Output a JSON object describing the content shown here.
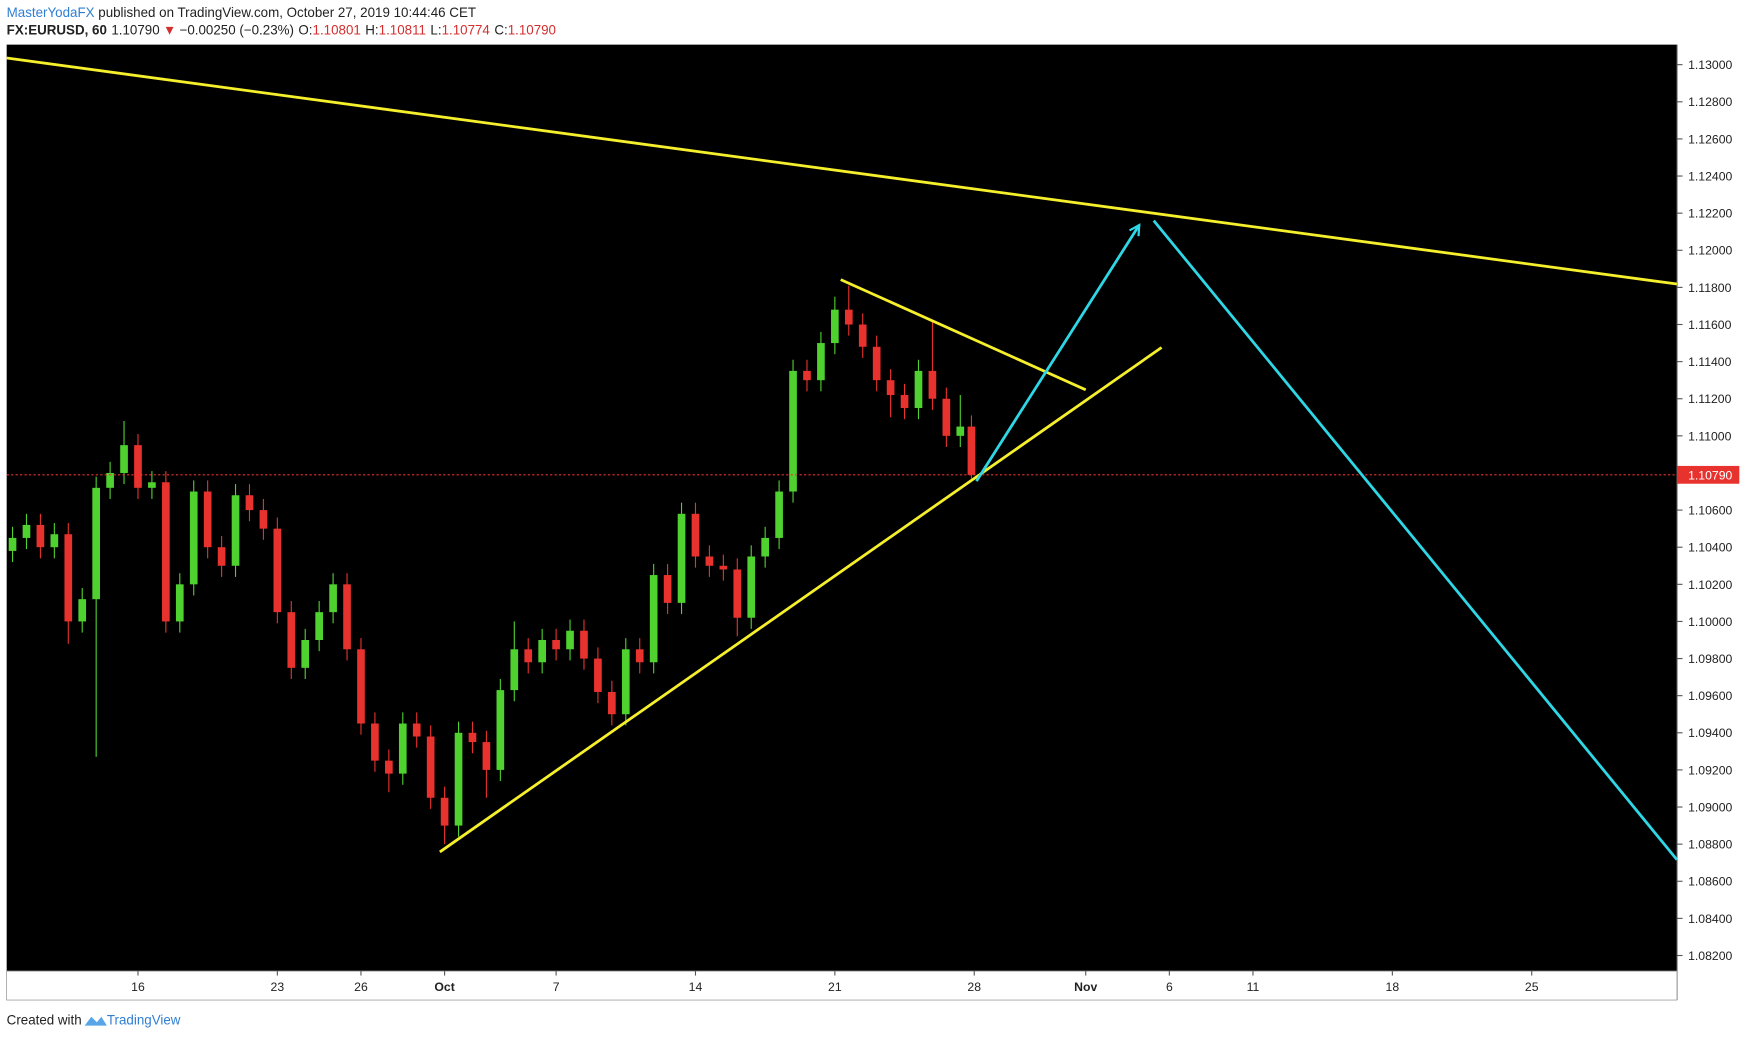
{
  "header": {
    "author": "MasterYodaFX",
    "published": " published on TradingView.com, October 27, 2019 10:44:46 CET",
    "symbol": "FX:EURUSD, 60",
    "last": "1.10790",
    "direction": "▼",
    "change": "−0.00250 (−0.23%)",
    "ohlc": [
      {
        "label": "O:",
        "value": "1.10801"
      },
      {
        "label": "H:",
        "value": "1.10811"
      },
      {
        "label": "L:",
        "value": "1.10774"
      },
      {
        "label": "C:",
        "value": "1.10790"
      }
    ]
  },
  "footer": {
    "text": "Created with",
    "brand": "TradingView"
  },
  "chart_data": {
    "type": "candlestick",
    "up_color": "#4fd130",
    "down_color": "#e8322e",
    "background": "#000000",
    "xlim": [
      -4.71,
      55.21
    ],
    "ylim": [
      1.08116,
      1.13108
    ],
    "xticks": [
      {
        "value": 0,
        "label": "16"
      },
      {
        "value": 5,
        "label": "23"
      },
      {
        "value": 8,
        "label": "26"
      },
      {
        "value": 11,
        "label": "Oct"
      },
      {
        "value": 15,
        "label": "7"
      },
      {
        "value": 20,
        "label": "14"
      },
      {
        "value": 25,
        "label": "21"
      },
      {
        "value": 30,
        "label": "28"
      },
      {
        "value": 34,
        "label": "Nov"
      },
      {
        "value": 37,
        "label": "6"
      },
      {
        "value": 40,
        "label": "11"
      },
      {
        "value": 45,
        "label": "18"
      },
      {
        "value": 50,
        "label": "25"
      }
    ],
    "yticks": [
      {
        "value": 1.082,
        "label": "1.08200"
      },
      {
        "value": 1.084,
        "label": "1.08400"
      },
      {
        "value": 1.086,
        "label": "1.08600"
      },
      {
        "value": 1.088,
        "label": "1.08800"
      },
      {
        "value": 1.09,
        "label": "1.09000"
      },
      {
        "value": 1.092,
        "label": "1.09200"
      },
      {
        "value": 1.094,
        "label": "1.09400"
      },
      {
        "value": 1.096,
        "label": "1.09600"
      },
      {
        "value": 1.098,
        "label": "1.09800"
      },
      {
        "value": 1.1,
        "label": "1.10000"
      },
      {
        "value": 1.102,
        "label": "1.10200"
      },
      {
        "value": 1.104,
        "label": "1.10400"
      },
      {
        "value": 1.106,
        "label": "1.10600"
      },
      {
        "value": 1.108,
        "label": "1.10800"
      },
      {
        "value": 1.11,
        "label": "1.11000"
      },
      {
        "value": 1.112,
        "label": "1.11200"
      },
      {
        "value": 1.114,
        "label": "1.11400"
      },
      {
        "value": 1.116,
        "label": "1.11600"
      },
      {
        "value": 1.118,
        "label": "1.11800"
      },
      {
        "value": 1.12,
        "label": "1.12000"
      },
      {
        "value": 1.122,
        "label": "1.12200"
      },
      {
        "value": 1.124,
        "label": "1.12400"
      },
      {
        "value": 1.126,
        "label": "1.12600"
      },
      {
        "value": 1.128,
        "label": "1.12800"
      },
      {
        "value": 1.13,
        "label": "1.13000"
      }
    ],
    "last_price": {
      "value": 1.1079,
      "label": "1.10790",
      "color": "#e8322e"
    },
    "ohlc": {
      "x": [
        -4.5,
        -4,
        -3.5,
        -3,
        -2.5,
        -2,
        -1.5,
        -1,
        -0.5,
        0,
        0.5,
        1,
        1.5,
        2,
        2.5,
        3,
        3.5,
        4,
        4.5,
        5,
        5.5,
        6,
        6.5,
        7,
        7.5,
        8,
        8.5,
        9,
        9.5,
        10,
        10.5,
        11,
        11.5,
        12,
        12.5,
        13,
        13.5,
        14,
        14.5,
        15,
        15.5,
        16,
        16.5,
        17,
        17.5,
        18,
        18.5,
        19,
        19.5,
        20,
        20.5,
        21,
        21.5,
        22,
        22.5,
        23,
        23.5,
        24,
        24.5,
        25,
        25.5,
        26,
        26.5,
        27,
        27.5,
        28,
        28.5,
        29,
        29.5,
        29.9
      ],
      "open": [
        1.1038,
        1.1045,
        1.1052,
        1.104,
        1.1047,
        1.1,
        1.1012,
        1.1072,
        1.108,
        1.1095,
        1.1072,
        1.1075,
        1.1,
        1.102,
        1.107,
        1.104,
        1.103,
        1.1068,
        1.106,
        1.105,
        1.1005,
        1.0975,
        1.099,
        1.1005,
        1.102,
        1.0985,
        1.0945,
        1.0925,
        1.0918,
        1.0945,
        1.0938,
        1.0905,
        1.089,
        1.094,
        1.0935,
        1.092,
        1.0963,
        1.0985,
        1.0978,
        1.099,
        1.0985,
        1.0995,
        1.098,
        1.0962,
        1.095,
        1.0985,
        1.0978,
        1.1025,
        1.101,
        1.1058,
        1.1035,
        1.103,
        1.1028,
        1.1002,
        1.1035,
        1.1045,
        1.107,
        1.1135,
        1.113,
        1.115,
        1.1168,
        1.116,
        1.1148,
        1.113,
        1.1122,
        1.1115,
        1.1135,
        1.112,
        1.11,
        1.1105
      ],
      "high": [
        1.1051,
        1.1058,
        1.1058,
        1.1053,
        1.1053,
        1.1018,
        1.1078,
        1.1086,
        1.1108,
        1.1101,
        1.1081,
        1.1081,
        1.1026,
        1.1076,
        1.1076,
        1.1046,
        1.1074,
        1.1074,
        1.1066,
        1.1056,
        1.1011,
        1.0996,
        1.1011,
        1.1026,
        1.1026,
        1.0991,
        1.0951,
        1.0931,
        1.0951,
        1.0951,
        1.0944,
        1.0911,
        1.0946,
        1.0946,
        1.0941,
        1.0969,
        1.1,
        1.0991,
        1.0996,
        1.0996,
        1.1001,
        1.1001,
        1.0986,
        1.0968,
        1.0991,
        1.0991,
        1.1031,
        1.1031,
        1.1064,
        1.1064,
        1.1041,
        1.1036,
        1.1034,
        1.1041,
        1.1051,
        1.1076,
        1.1141,
        1.1141,
        1.1156,
        1.1175,
        1.1181,
        1.1166,
        1.1154,
        1.1136,
        1.1128,
        1.1141,
        1.1162,
        1.1126,
        1.1122,
        1.1111
      ],
      "low": [
        1.1032,
        1.1039,
        1.1034,
        1.1034,
        1.0988,
        1.0994,
        1.0927,
        1.1066,
        1.1074,
        1.1066,
        1.1066,
        1.0994,
        1.0994,
        1.1014,
        1.1034,
        1.1024,
        1.1024,
        1.1054,
        1.1044,
        1.0999,
        1.0969,
        1.0969,
        1.0984,
        1.0999,
        1.0979,
        1.0939,
        1.0919,
        1.0908,
        1.0912,
        1.0932,
        1.0899,
        1.088,
        1.0884,
        1.0929,
        1.0905,
        1.0914,
        1.0957,
        1.0972,
        1.0972,
        1.0979,
        1.0979,
        1.0974,
        1.0956,
        1.0944,
        1.0944,
        1.0972,
        1.0972,
        1.1004,
        1.1004,
        1.1029,
        1.1024,
        1.1022,
        1.0992,
        1.0996,
        1.1029,
        1.1039,
        1.1064,
        1.1124,
        1.1124,
        1.1144,
        1.1154,
        1.1142,
        1.1124,
        1.111,
        1.1109,
        1.1109,
        1.1114,
        1.1094,
        1.1094,
        1.1077
      ],
      "close": [
        1.1045,
        1.1052,
        1.104,
        1.1047,
        1.1,
        1.1012,
        1.1072,
        1.108,
        1.1095,
        1.1072,
        1.1075,
        1.1,
        1.102,
        1.107,
        1.104,
        1.103,
        1.1068,
        1.106,
        1.105,
        1.1005,
        1.0975,
        1.099,
        1.1005,
        1.102,
        1.0985,
        1.0945,
        1.0925,
        1.0918,
        1.0945,
        1.0938,
        1.0905,
        1.089,
        1.094,
        1.0935,
        1.092,
        1.0963,
        1.0985,
        1.0978,
        1.099,
        1.0985,
        1.0995,
        1.098,
        1.0962,
        1.095,
        1.0985,
        1.0978,
        1.1025,
        1.101,
        1.1058,
        1.1035,
        1.103,
        1.1028,
        1.1002,
        1.1035,
        1.1045,
        1.107,
        1.1135,
        1.113,
        1.115,
        1.1168,
        1.116,
        1.1148,
        1.113,
        1.1122,
        1.1115,
        1.1135,
        1.112,
        1.11,
        1.1105,
        1.1079
      ]
    },
    "lines": [
      {
        "color": "#f5ef2c",
        "x": [
          -4.71,
          55.21
        ],
        "y": [
          1.13036,
          1.11818
        ],
        "arrow": false
      },
      {
        "color": "#f5ef2c",
        "x": [
          10.83,
          36.72
        ],
        "y": [
          1.08758,
          1.11476
        ],
        "arrow": false
      },
      {
        "color": "#f5ef2c",
        "x": [
          25.21,
          34.0
        ],
        "y": [
          1.11842,
          1.11248
        ],
        "arrow": false
      },
      {
        "color": "#2fd6e6",
        "x": [
          30.08,
          35.92
        ],
        "y": [
          1.10756,
          1.12136
        ],
        "arrow": true
      },
      {
        "color": "#2fd6e6",
        "x": [
          36.44,
          55.21
        ],
        "y": [
          1.1216,
          1.08716
        ],
        "arrow": false
      }
    ]
  }
}
